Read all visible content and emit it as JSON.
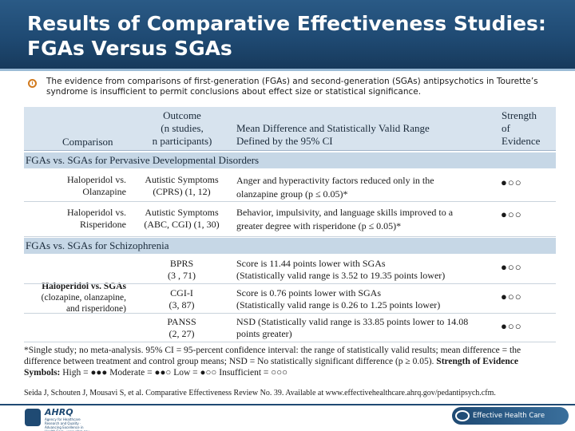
{
  "slide": {
    "title_line1": "Results of Comparative Effectiveness Studies:",
    "title_line2": "FGAs Versus SGAs",
    "bullet": "The evidence from comparisons of first-generation (FGAs) and second-generation (SGAs) antipsychotics in Tourette’s syndrome is insufficient to permit conclusions about effect size or statistical significance."
  },
  "table": {
    "headers": {
      "comparison": "Comparison",
      "outcome_l1": "Outcome",
      "outcome_l2": "(n studies,",
      "outcome_l3": "n participants)",
      "mean_l1": "Mean Difference and Statistically Valid Range",
      "mean_l2": "Defined by the 95% CI",
      "strength_l1": "Strength",
      "strength_l2": "of",
      "strength_l3": "Evidence"
    },
    "section1": "FGAs vs. SGAs for Pervasive Developmental Disorders",
    "pdd_rows": [
      {
        "comparison_l1": "Haloperidol vs.",
        "comparison_l2": "Olanzapine",
        "outcome_l1": "Autistic Symptoms",
        "outcome_l2": "(CPRS)   (1, 12)",
        "result_l1": "Anger and hyperactivity factors reduced only in the",
        "result_l2": "olanzapine group (p ≤ 0.05)*",
        "strength": "●○○"
      },
      {
        "comparison_l1": "Haloperidol vs.",
        "comparison_l2": "Risperidone",
        "outcome_l1": "Autistic Symptoms",
        "outcome_l2": "(ABC, CGI)  (1, 30)",
        "result_l1": "Behavior, impulsivity, and language skills improved to a",
        "result_l2": "greater degree with risperidone (p ≤ 0.05)*",
        "strength": "●○○"
      }
    ],
    "section2": "FGAs vs. SGAs for Schizophrenia",
    "schizo_comparison_l1": "Haloperidol vs. SGAs",
    "schizo_comparison_l2": "(clozapine, olanzapine,",
    "schizo_comparison_l3": "and risperidone)",
    "schizo_rows": [
      {
        "outcome_l1": "BPRS",
        "outcome_l2": "(3 , 71)",
        "result_l1": "Score is 11.44 points lower with SGAs",
        "result_l2": "(Statistically valid range is 3.52 to 19.35 points lower)",
        "strength": "●○○"
      },
      {
        "outcome_l1": "CGI-I",
        "outcome_l2": "(3, 87)",
        "result_l1": "Score is 0.76 points lower with SGAs",
        "result_l2": "(Statistically valid range is 0.26 to 1.25 points lower)",
        "strength": "●○○"
      },
      {
        "outcome_l1": "PANSS",
        "outcome_l2": "(2, 27)",
        "result_l1": "NSD (Statistically valid range is 33.85 points lower to 14.08",
        "result_l2": "points greater)",
        "strength": "●○○"
      }
    ]
  },
  "footnote": {
    "text": "*Single study; no meta-analysis. 95% CI = 95-percent confidence interval: the range of statistically valid results; mean difference = the difference between treatment and control group means; NSD = No statistically significant difference (p ≥ 0.05).",
    "strength_label": "Strength of Evidence Symbols:",
    "symbols": "High = ●●●    Moderate = ●●○    Low = ●○○    Insufficient = ○○○"
  },
  "citation": "Seida J, Schouten J, Mousavi S, et al. Comparative Effectiveness Review No. 39. Available at www.effectivehealthcare.ahrq.gov/pedantipsych.cfm.",
  "footer": {
    "ahrq": "AHRQ",
    "ahrq_sub": "Agency for Healthcare Research and Quality · Advancing Excellence in Health Care · www.ahrq.gov",
    "ehc": "Effective Health Care Program"
  },
  "colors": {
    "header_bg": "#1f4a73",
    "table_header_bg": "#d7e3ee",
    "section_bg": "#c6d7e6",
    "bullet_accent": "#d17a1e"
  }
}
